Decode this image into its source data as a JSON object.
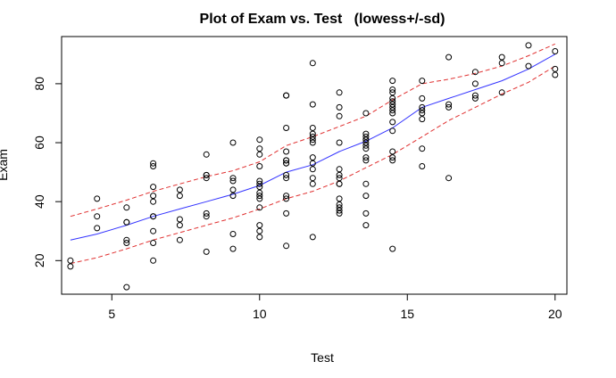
{
  "chart_data": {
    "type": "scatter",
    "title": "Plot of Exam vs. Test   (lowess+/-sd)",
    "xlabel": "Test",
    "ylabel": "Exam",
    "xlim": [
      3.3,
      20.4
    ],
    "ylim": [
      8.6,
      96.0
    ],
    "xticks": [
      5,
      10,
      15,
      20
    ],
    "yticks": [
      20,
      40,
      60,
      80
    ],
    "grid": false,
    "colors": {
      "points": "#000000",
      "lowess": "#3333ff",
      "sd_band": "#e03030"
    },
    "points": {
      "x": [
        3.6,
        3.6,
        4.5,
        4.5,
        4.5,
        5.5,
        5.5,
        5.5,
        5.5,
        5.5,
        5.5,
        6.4,
        6.4,
        6.4,
        6.4,
        6.4,
        6.4,
        6.4,
        6.4,
        6.4,
        6.4,
        7.3,
        7.3,
        7.3,
        7.3,
        7.3,
        8.2,
        8.2,
        8.2,
        8.2,
        8.2,
        8.2,
        8.2,
        9.1,
        9.1,
        9.1,
        9.1,
        9.1,
        9.1,
        9.1,
        10.0,
        10.0,
        10.0,
        10.0,
        10.0,
        10.0,
        10.0,
        10.0,
        10.0,
        10.0,
        10.0,
        10.0,
        10.0,
        10.0,
        10.9,
        10.9,
        10.9,
        10.9,
        10.9,
        10.9,
        10.9,
        10.9,
        10.9,
        10.9,
        10.9,
        10.9,
        10.9,
        10.9,
        11.8,
        11.8,
        11.8,
        11.8,
        11.8,
        11.8,
        11.8,
        11.8,
        11.8,
        11.8,
        11.8,
        11.8,
        11.8,
        12.7,
        12.7,
        12.7,
        12.7,
        12.7,
        12.7,
        12.7,
        12.7,
        12.7,
        12.7,
        12.7,
        12.7,
        12.7,
        12.7,
        13.6,
        13.6,
        13.6,
        13.6,
        13.6,
        13.6,
        13.6,
        13.6,
        13.6,
        13.6,
        13.6,
        13.6,
        13.6,
        13.6,
        14.5,
        14.5,
        14.5,
        14.5,
        14.5,
        14.5,
        14.5,
        14.5,
        14.5,
        14.5,
        14.5,
        14.5,
        14.5,
        14.5,
        14.5,
        15.5,
        15.5,
        15.5,
        15.5,
        15.5,
        15.5,
        15.5,
        15.5,
        16.4,
        16.4,
        16.4,
        16.4,
        17.3,
        17.3,
        17.3,
        17.3,
        18.2,
        18.2,
        18.2,
        19.1,
        19.1,
        20.0,
        20.0,
        20.0
      ],
      "y": [
        18,
        20,
        41,
        35,
        31,
        11,
        26,
        27,
        33,
        33,
        38,
        20,
        26,
        30,
        35,
        35,
        40,
        42,
        45,
        52,
        53,
        27,
        32,
        34,
        42,
        44,
        23,
        35,
        36,
        48,
        49,
        49,
        56,
        24,
        29,
        42,
        44,
        47,
        48,
        60,
        28,
        30,
        32,
        38,
        41,
        42,
        43,
        45,
        46,
        47,
        52,
        56,
        58,
        61,
        25,
        36,
        41,
        42,
        48,
        49,
        53,
        54,
        57,
        65,
        76,
        76,
        54,
        53,
        28,
        46,
        48,
        51,
        53,
        55,
        60,
        61,
        62,
        63,
        65,
        73,
        87,
        36,
        37,
        38,
        39,
        41,
        46,
        48,
        49,
        51,
        60,
        69,
        72,
        77,
        46,
        32,
        36,
        42,
        46,
        54,
        55,
        58,
        59,
        61,
        61,
        62,
        63,
        70,
        60,
        24,
        55,
        57,
        64,
        67,
        70,
        71,
        72,
        73,
        74,
        75,
        77,
        78,
        81,
        54,
        52,
        58,
        68,
        70,
        71,
        72,
        75,
        81,
        48,
        72,
        73,
        89,
        76,
        75,
        80,
        84,
        77,
        87,
        89,
        86,
        93,
        83,
        85,
        91
      ]
    },
    "lowess": {
      "x": [
        3.6,
        4.5,
        5.5,
        6.4,
        7.3,
        8.2,
        9.1,
        10.0,
        10.9,
        11.8,
        12.7,
        13.6,
        14.5,
        15.5,
        16.4,
        17.3,
        18.2,
        19.1,
        20.0
      ],
      "y": [
        27,
        29,
        32,
        35,
        37.5,
        40,
        42.5,
        45.5,
        50,
        52.5,
        57,
        60.5,
        65,
        72,
        75,
        78,
        81,
        85,
        90
      ]
    },
    "upper_band": {
      "x": [
        3.6,
        4.5,
        5.5,
        6.4,
        7.3,
        8.2,
        9.1,
        10.0,
        10.9,
        11.8,
        12.7,
        13.6,
        14.5,
        15.5,
        16.4,
        17.3,
        18.2,
        19.1,
        20.0
      ],
      "y": [
        35,
        37.5,
        40.5,
        43.5,
        46,
        48.5,
        50.5,
        53.5,
        59,
        62,
        65.5,
        69,
        74.5,
        80,
        81.5,
        83.5,
        86,
        89.5,
        93.5
      ]
    },
    "lower_band": {
      "x": [
        3.6,
        4.5,
        5.5,
        6.4,
        7.3,
        8.2,
        9.1,
        10.0,
        10.9,
        11.8,
        12.7,
        13.6,
        14.5,
        15.5,
        16.4,
        17.3,
        18.2,
        19.1,
        20.0
      ],
      "y": [
        19,
        21,
        24,
        27,
        29.5,
        32,
        34.5,
        37.5,
        41,
        43.5,
        47,
        51.5,
        56,
        62,
        67.5,
        72,
        76.5,
        80.5,
        86
      ]
    }
  }
}
